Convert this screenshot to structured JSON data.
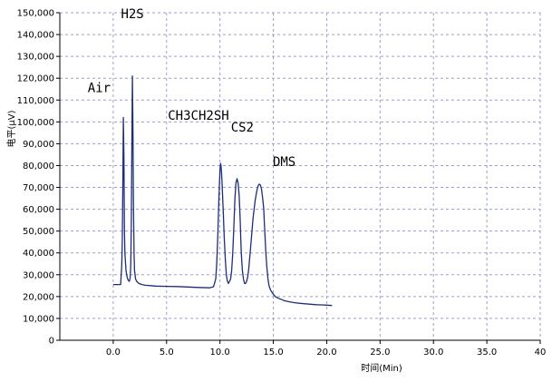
{
  "chart_data": {
    "type": "line",
    "xlabel": "时间(Min)",
    "ylabel": "电平(μV)",
    "xlim": [
      -5,
      40
    ],
    "ylim": [
      0,
      150000
    ],
    "x_ticks": [
      "0.0",
      "5.0",
      "10.0",
      "15.0",
      "20.0",
      "25.0",
      "30.0",
      "35.0",
      "40"
    ],
    "y_ticks": [
      "0",
      "10,000",
      "20,000",
      "30,000",
      "40,000",
      "50,000",
      "60,000",
      "70,000",
      "80,000",
      "90,000",
      "100,000",
      "110,000",
      "120,000",
      "130,000",
      "140,000",
      "150,000"
    ],
    "grid": true,
    "series": [
      {
        "color": "#1e2d7a",
        "x": [
          0.0,
          0.2,
          0.3,
          0.5,
          0.7,
          0.8,
          0.85,
          0.9,
          0.95,
          1.0,
          1.05,
          1.1,
          1.15,
          1.2,
          1.3,
          1.4,
          1.5,
          1.55,
          1.6,
          1.65,
          1.7,
          1.75,
          1.8,
          1.85,
          1.9,
          1.95,
          2.0,
          2.1,
          2.2,
          2.4,
          2.7,
          3.0,
          3.5,
          4.0,
          5.0,
          6.0,
          7.0,
          8.0,
          9.0,
          9.4,
          9.6,
          9.7,
          9.8,
          9.9,
          10.0,
          10.05,
          10.1,
          10.15,
          10.2,
          10.3,
          10.4,
          10.5,
          10.6,
          10.7,
          10.8,
          11.0,
          11.1,
          11.2,
          11.3,
          11.4,
          11.5,
          11.6,
          11.7,
          11.8,
          11.9,
          11.95,
          12.0,
          12.05,
          12.1,
          12.2,
          12.3,
          12.4,
          12.5,
          12.6,
          12.7,
          12.9,
          13.1,
          13.3,
          13.4,
          13.5,
          13.6,
          13.7,
          13.8,
          13.9,
          14.0,
          14.1,
          14.15,
          14.2,
          14.25,
          14.3,
          14.4,
          14.5,
          14.6,
          14.7,
          14.8,
          15.0,
          15.2,
          15.4,
          15.6,
          15.8,
          16.0,
          16.5,
          17.0,
          17.5,
          18.0,
          18.5,
          19.0,
          19.5,
          20.0,
          20.5
        ],
        "y": [
          25500,
          25500,
          25500,
          25500,
          25500,
          34000,
          45000,
          70000,
          102000,
          85000,
          50000,
          40000,
          36000,
          32000,
          29000,
          27500,
          27000,
          27500,
          29000,
          35000,
          55000,
          90000,
          121000,
          95000,
          60000,
          40000,
          32000,
          28000,
          27000,
          26000,
          25500,
          25200,
          25000,
          24800,
          24700,
          24600,
          24400,
          24200,
          24000,
          24500,
          28000,
          35000,
          48000,
          65000,
          78000,
          81000,
          80000,
          77000,
          72000,
          60000,
          47000,
          37000,
          30000,
          27000,
          26000,
          28000,
          32000,
          40000,
          52000,
          65000,
          72000,
          74000,
          72000,
          66000,
          55000,
          47000,
          40000,
          36000,
          32000,
          28000,
          26000,
          26000,
          27000,
          29000,
          33000,
          44000,
          56000,
          64000,
          67000,
          69500,
          71000,
          71500,
          71000,
          69000,
          65000,
          60000,
          55000,
          50000,
          45000,
          40000,
          33000,
          28000,
          25000,
          23500,
          22500,
          21000,
          20000,
          19400,
          19000,
          18600,
          18200,
          17600,
          17200,
          16900,
          16700,
          16500,
          16300,
          16200,
          16100,
          15900
        ]
      }
    ],
    "annotations": [
      {
        "text": "Air",
        "x": 0.95,
        "y": 102000
      },
      {
        "text": "H2S",
        "x": 1.8,
        "y": 121000
      },
      {
        "text": "CH3CH2SH",
        "x": 10.05,
        "y": 81000
      },
      {
        "text": "CS2",
        "x": 11.7,
        "y": 74000
      },
      {
        "text": "DMS",
        "x": 14.1,
        "y": 71500
      }
    ]
  }
}
